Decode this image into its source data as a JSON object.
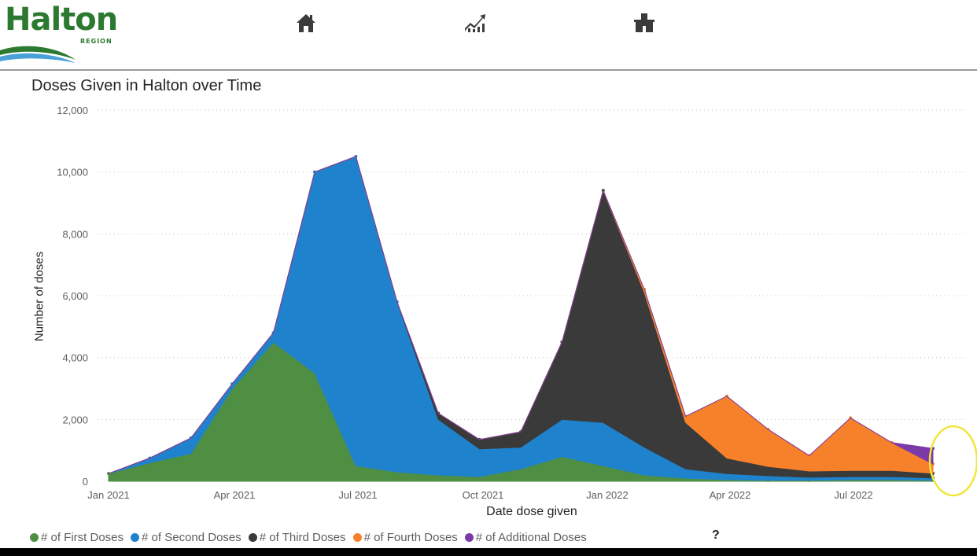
{
  "header": {
    "logo": {
      "text": "Halton",
      "subtext": "REGION"
    },
    "nav": [
      {
        "icon": "home-icon"
      },
      {
        "icon": "trend-chart-icon"
      },
      {
        "icon": "clinic-building-icon"
      }
    ]
  },
  "colors": {
    "first": "#4f8f43",
    "second": "#1f82cc",
    "third": "#3a3a3a",
    "fourth": "#f7812a",
    "additional": "#7b3aa8",
    "highlight_circle": "#f1e63b"
  },
  "help_label": "?",
  "chart_data": {
    "type": "area",
    "title": "Doses Given in Halton over Time",
    "xlabel": "Date dose given",
    "ylabel": "Number of doses",
    "ylim": [
      0,
      12000
    ],
    "yticks": [
      "0",
      "2,000",
      "4,000",
      "6,000",
      "8,000",
      "10,000",
      "12,000"
    ],
    "xticks": [
      "Jan 2021",
      "Apr 2021",
      "Jul 2021",
      "Oct 2021",
      "Jan 2022",
      "Apr 2022",
      "Jul 2022"
    ],
    "grid": true,
    "legend_position": "bottom-left",
    "x": [
      "2021-01",
      "2021-02",
      "2021-03",
      "2021-04",
      "2021-05",
      "2021-06",
      "2021-07",
      "2021-08",
      "2021-09",
      "2021-10",
      "2021-11",
      "2021-12",
      "2022-01",
      "2022-02",
      "2022-03",
      "2022-04",
      "2022-05",
      "2022-06",
      "2022-07",
      "2022-08",
      "2022-09"
    ],
    "series": [
      {
        "name": "# of First Doses",
        "key": "first",
        "values": [
          250,
          600,
          900,
          3000,
          4500,
          3500,
          500,
          300,
          200,
          150,
          400,
          800,
          500,
          200,
          100,
          50,
          30,
          30,
          50,
          50,
          30
        ]
      },
      {
        "name": "# of Second Doses",
        "key": "second",
        "values": [
          0,
          150,
          500,
          150,
          300,
          6500,
          10000,
          5500,
          1800,
          900,
          700,
          1200,
          1400,
          900,
          300,
          200,
          150,
          100,
          100,
          100,
          80
        ]
      },
      {
        "name": "# of Third Doses",
        "key": "third",
        "values": [
          0,
          0,
          0,
          0,
          0,
          0,
          0,
          0,
          200,
          300,
          500,
          2500,
          7500,
          5000,
          1500,
          500,
          300,
          200,
          200,
          200,
          150
        ]
      },
      {
        "name": "# of Fourth Doses",
        "key": "fourth",
        "values": [
          0,
          0,
          0,
          0,
          0,
          0,
          0,
          0,
          0,
          0,
          0,
          0,
          0,
          100,
          200,
          2000,
          1200,
          500,
          1700,
          900,
          300
        ]
      },
      {
        "name": "# of Additional Doses",
        "key": "additional",
        "values": [
          0,
          0,
          0,
          0,
          0,
          0,
          0,
          0,
          0,
          0,
          0,
          0,
          0,
          0,
          0,
          0,
          0,
          0,
          0,
          0,
          500
        ]
      }
    ]
  }
}
